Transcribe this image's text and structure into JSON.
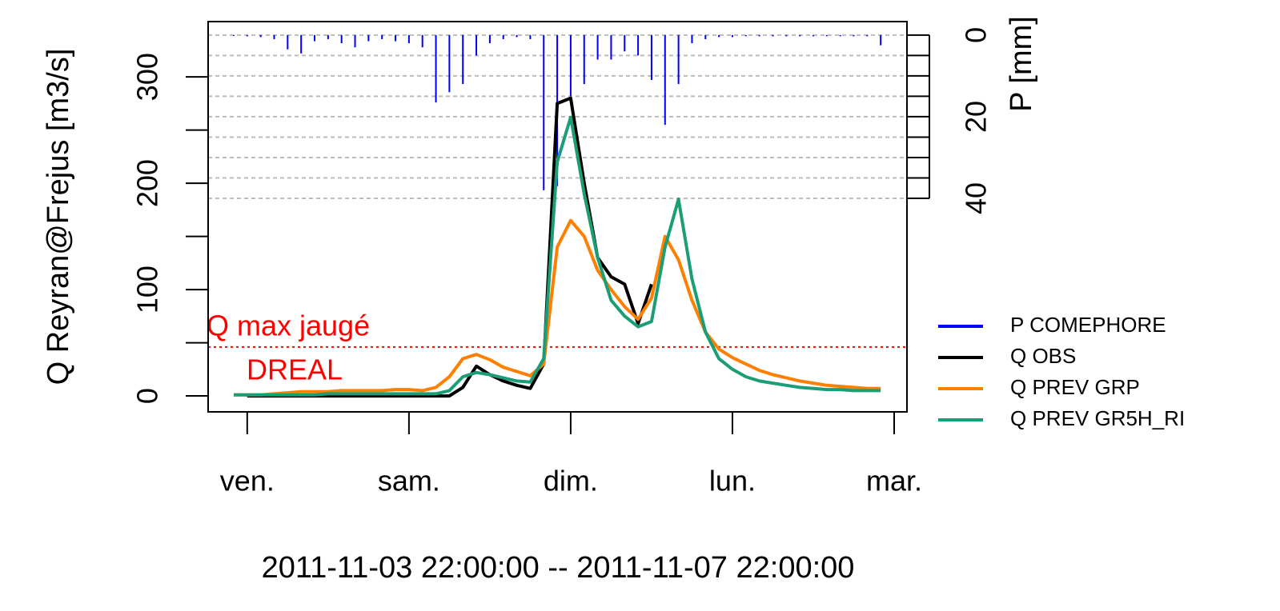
{
  "chart_data": {
    "type": "line",
    "ylabel": "Q Reyran@Frejus [m3/s]",
    "y2label": "P [mm]",
    "xlabel": "2011-11-03 22:00:00 -- 2011-11-07 22:00:00",
    "x": [
      "2011-11-03 22:00",
      "2011-11-04 00:00",
      "2011-11-04 02:00",
      "2011-11-04 04:00",
      "2011-11-04 06:00",
      "2011-11-04 08:00",
      "2011-11-04 10:00",
      "2011-11-04 12:00",
      "2011-11-04 14:00",
      "2011-11-04 16:00",
      "2011-11-04 18:00",
      "2011-11-04 20:00",
      "2011-11-04 22:00",
      "2011-11-05 00:00",
      "2011-11-05 02:00",
      "2011-11-05 04:00",
      "2011-11-05 06:00",
      "2011-11-05 08:00",
      "2011-11-05 10:00",
      "2011-11-05 12:00",
      "2011-11-05 14:00",
      "2011-11-05 16:00",
      "2011-11-05 18:00",
      "2011-11-05 20:00",
      "2011-11-05 22:00",
      "2011-11-06 00:00",
      "2011-11-06 02:00",
      "2011-11-06 04:00",
      "2011-11-06 06:00",
      "2011-11-06 08:00",
      "2011-11-06 10:00",
      "2011-11-06 12:00",
      "2011-11-06 14:00",
      "2011-11-06 16:00",
      "2011-11-06 18:00",
      "2011-11-06 20:00",
      "2011-11-06 22:00",
      "2011-11-07 00:00",
      "2011-11-07 02:00",
      "2011-11-07 04:00",
      "2011-11-07 06:00",
      "2011-11-07 08:00",
      "2011-11-07 10:00",
      "2011-11-07 12:00",
      "2011-11-07 14:00",
      "2011-11-07 16:00",
      "2011-11-07 18:00",
      "2011-11-07 20:00",
      "2011-11-07 22:00"
    ],
    "series": [
      {
        "name": "P COMEPHORE",
        "type": "bar",
        "axis": "y2",
        "color": "#0000ff",
        "values": [
          0.2,
          0.3,
          0.5,
          1,
          3.5,
          4.5,
          1.5,
          1,
          2,
          3,
          1.5,
          1,
          1.5,
          2,
          3,
          16.5,
          14,
          12,
          5,
          2,
          1,
          0.5,
          1,
          38,
          37,
          15,
          12,
          6,
          6,
          4,
          5,
          11,
          22,
          12,
          2,
          1,
          0.5,
          0.5,
          0.3,
          0.3,
          0.3,
          0.3,
          0.3,
          0.3,
          0.3,
          0.3,
          0.3,
          0.3,
          2.5
        ]
      },
      {
        "name": "Q OBS",
        "type": "line",
        "color": "#000000",
        "values": [
          null,
          0,
          0,
          0,
          0,
          0,
          0,
          0,
          0,
          0,
          0,
          0,
          0,
          0,
          0,
          0,
          0,
          8,
          28,
          20,
          14,
          10,
          7,
          30,
          275,
          280,
          200,
          130,
          112,
          105,
          68,
          105,
          null,
          null,
          null,
          null,
          null,
          null,
          null,
          null,
          null,
          null,
          null,
          null,
          null,
          null,
          null,
          null,
          null
        ]
      },
      {
        "name": "Q PREV GRP",
        "type": "line",
        "color": "#ff7f00",
        "values": [
          1,
          1,
          1,
          2,
          3,
          4,
          4,
          4,
          5,
          5,
          5,
          5,
          6,
          6,
          5,
          8,
          18,
          35,
          39,
          34,
          27,
          23,
          19,
          30,
          140,
          165,
          150,
          118,
          100,
          84,
          72,
          92,
          150,
          128,
          90,
          60,
          44,
          36,
          30,
          24,
          20,
          17,
          14,
          12,
          10,
          9,
          8,
          7,
          7
        ]
      },
      {
        "name": "Q PREV GR5H_RI",
        "type": "line",
        "color": "#1b9e77",
        "values": [
          1,
          1,
          1,
          1,
          1,
          1,
          1,
          2,
          2,
          2,
          2,
          2,
          2,
          2,
          2,
          2,
          5,
          18,
          22,
          20,
          17,
          14,
          13,
          35,
          220,
          262,
          190,
          130,
          90,
          75,
          65,
          70,
          140,
          185,
          110,
          60,
          35,
          25,
          18,
          14,
          12,
          10,
          8,
          7,
          6,
          6,
          5,
          5,
          5
        ]
      }
    ],
    "xlim": [
      "2011-11-03 18:12",
      "2011-11-08 01:54"
    ],
    "xticks": [
      {
        "value": "2011-11-04 00:00",
        "label": "ven."
      },
      {
        "value": "2011-11-05 00:00",
        "label": "sam."
      },
      {
        "value": "2011-11-06 00:00",
        "label": "dim."
      },
      {
        "value": "2011-11-07 00:00",
        "label": "lun."
      },
      {
        "value": "2011-11-08 00:00",
        "label": "mar."
      }
    ],
    "ylim": [
      -15,
      352
    ],
    "yticks": [
      0,
      100,
      200,
      300
    ],
    "yminor_ticks": [
      50,
      150,
      250
    ],
    "y2lim": [
      92.3,
      -3.3
    ],
    "y2ticks": [
      0,
      20,
      40
    ],
    "y2minor_ticks": [
      5,
      10,
      15,
      25,
      30,
      35
    ],
    "grid": true,
    "legend": "right",
    "hline": {
      "value": 46,
      "color": "#ff0000"
    },
    "annotations": [
      "Q max jaugé",
      "DREAL"
    ]
  }
}
